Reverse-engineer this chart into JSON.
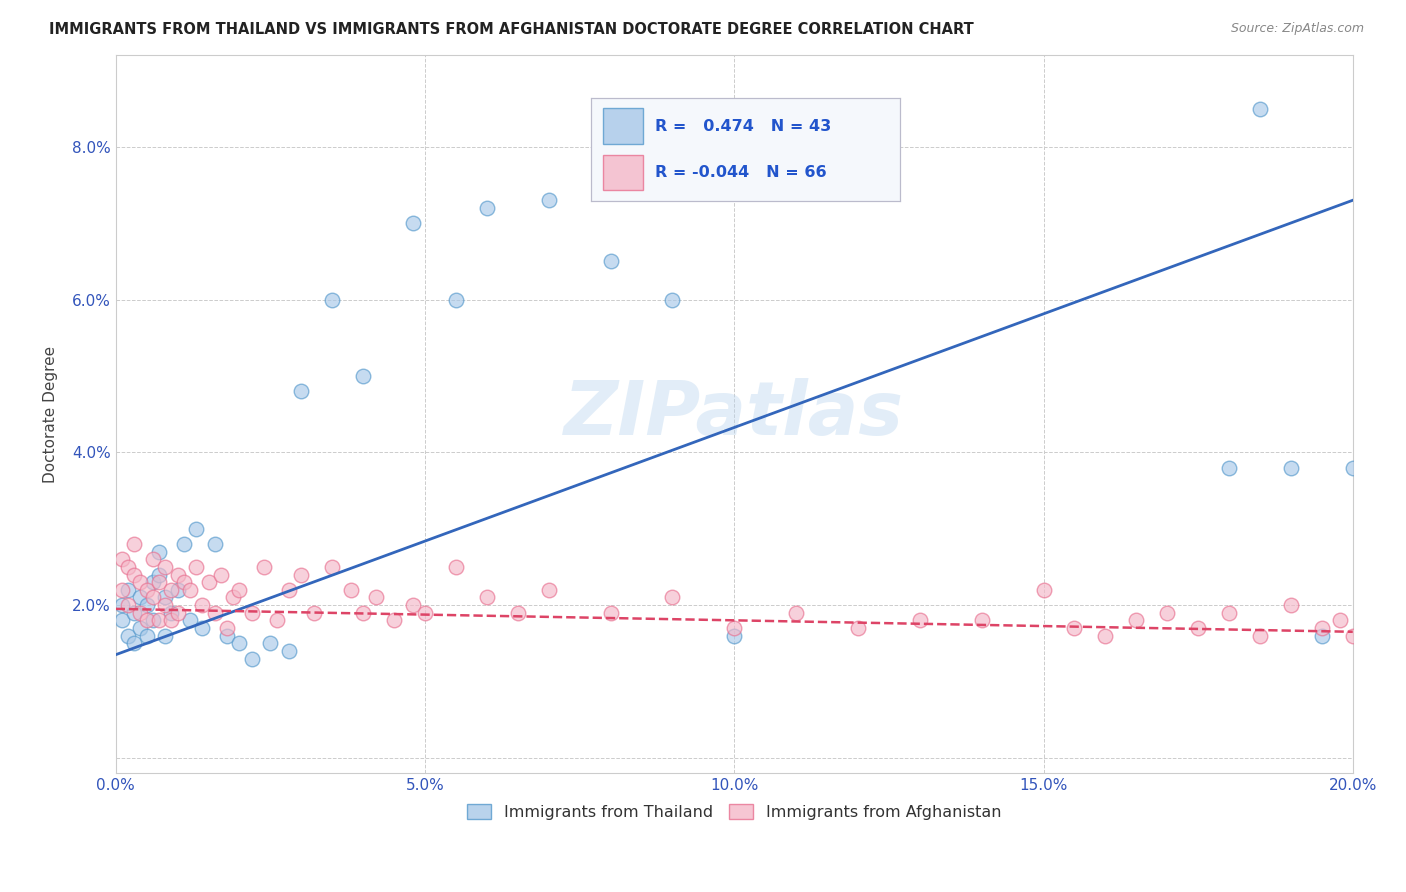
{
  "title": "IMMIGRANTS FROM THAILAND VS IMMIGRANTS FROM AFGHANISTAN DOCTORATE DEGREE CORRELATION CHART",
  "source": "Source: ZipAtlas.com",
  "ylabel": "Doctorate Degree",
  "xlim": [
    0.0,
    0.2
  ],
  "ylim": [
    -0.002,
    0.092
  ],
  "xticks": [
    0.0,
    0.05,
    0.1,
    0.15,
    0.2
  ],
  "xticklabels": [
    "0.0%",
    "5.0%",
    "10.0%",
    "15.0%",
    "20.0%"
  ],
  "yticks": [
    0.0,
    0.02,
    0.04,
    0.06,
    0.08
  ],
  "yticklabels": [
    "",
    "2.0%",
    "4.0%",
    "6.0%",
    "8.0%"
  ],
  "thailand_color": "#a8c8e8",
  "afghanistan_color": "#f4b8c8",
  "thailand_edge_color": "#5599cc",
  "afghanistan_edge_color": "#e87090",
  "thailand_line_color": "#3366bb",
  "afghanistan_line_color": "#dd4466",
  "background_color": "#ffffff",
  "watermark": "ZIPatlas",
  "legend_R_thailand": "0.474",
  "legend_N_thailand": "43",
  "legend_R_afghanistan": "-0.044",
  "legend_N_afghanistan": "66",
  "thailand_points_x": [
    0.001,
    0.001,
    0.002,
    0.002,
    0.003,
    0.003,
    0.004,
    0.004,
    0.005,
    0.005,
    0.006,
    0.006,
    0.007,
    0.007,
    0.008,
    0.008,
    0.009,
    0.01,
    0.011,
    0.012,
    0.013,
    0.014,
    0.016,
    0.018,
    0.02,
    0.022,
    0.025,
    0.028,
    0.03,
    0.035,
    0.04,
    0.048,
    0.055,
    0.06,
    0.07,
    0.08,
    0.09,
    0.1,
    0.18,
    0.185,
    0.19,
    0.195,
    0.2
  ],
  "thailand_points_y": [
    0.02,
    0.018,
    0.022,
    0.016,
    0.019,
    0.015,
    0.021,
    0.017,
    0.02,
    0.016,
    0.023,
    0.018,
    0.027,
    0.024,
    0.021,
    0.016,
    0.019,
    0.022,
    0.028,
    0.018,
    0.03,
    0.017,
    0.028,
    0.016,
    0.015,
    0.013,
    0.015,
    0.014,
    0.048,
    0.06,
    0.05,
    0.07,
    0.06,
    0.072,
    0.073,
    0.065,
    0.06,
    0.016,
    0.038,
    0.085,
    0.038,
    0.016,
    0.038
  ],
  "afghanistan_points_x": [
    0.001,
    0.001,
    0.002,
    0.002,
    0.003,
    0.003,
    0.004,
    0.004,
    0.005,
    0.005,
    0.006,
    0.006,
    0.007,
    0.007,
    0.008,
    0.008,
    0.009,
    0.009,
    0.01,
    0.01,
    0.011,
    0.012,
    0.013,
    0.014,
    0.015,
    0.016,
    0.017,
    0.018,
    0.019,
    0.02,
    0.022,
    0.024,
    0.026,
    0.028,
    0.03,
    0.032,
    0.035,
    0.038,
    0.04,
    0.042,
    0.045,
    0.048,
    0.05,
    0.055,
    0.06,
    0.065,
    0.07,
    0.08,
    0.09,
    0.1,
    0.11,
    0.12,
    0.13,
    0.14,
    0.15,
    0.155,
    0.16,
    0.165,
    0.17,
    0.175,
    0.18,
    0.185,
    0.19,
    0.195,
    0.198,
    0.2
  ],
  "afghanistan_points_y": [
    0.026,
    0.022,
    0.025,
    0.02,
    0.024,
    0.028,
    0.019,
    0.023,
    0.022,
    0.018,
    0.026,
    0.021,
    0.023,
    0.018,
    0.025,
    0.02,
    0.022,
    0.018,
    0.024,
    0.019,
    0.023,
    0.022,
    0.025,
    0.02,
    0.023,
    0.019,
    0.024,
    0.017,
    0.021,
    0.022,
    0.019,
    0.025,
    0.018,
    0.022,
    0.024,
    0.019,
    0.025,
    0.022,
    0.019,
    0.021,
    0.018,
    0.02,
    0.019,
    0.025,
    0.021,
    0.019,
    0.022,
    0.019,
    0.021,
    0.017,
    0.019,
    0.017,
    0.018,
    0.018,
    0.022,
    0.017,
    0.016,
    0.018,
    0.019,
    0.017,
    0.019,
    0.016,
    0.02,
    0.017,
    0.018,
    0.016
  ],
  "thailand_line_x": [
    0.0,
    0.2
  ],
  "thailand_line_y": [
    0.0135,
    0.073
  ],
  "afghanistan_line_x": [
    0.0,
    0.2
  ],
  "afghanistan_line_y": [
    0.0195,
    0.0165
  ]
}
